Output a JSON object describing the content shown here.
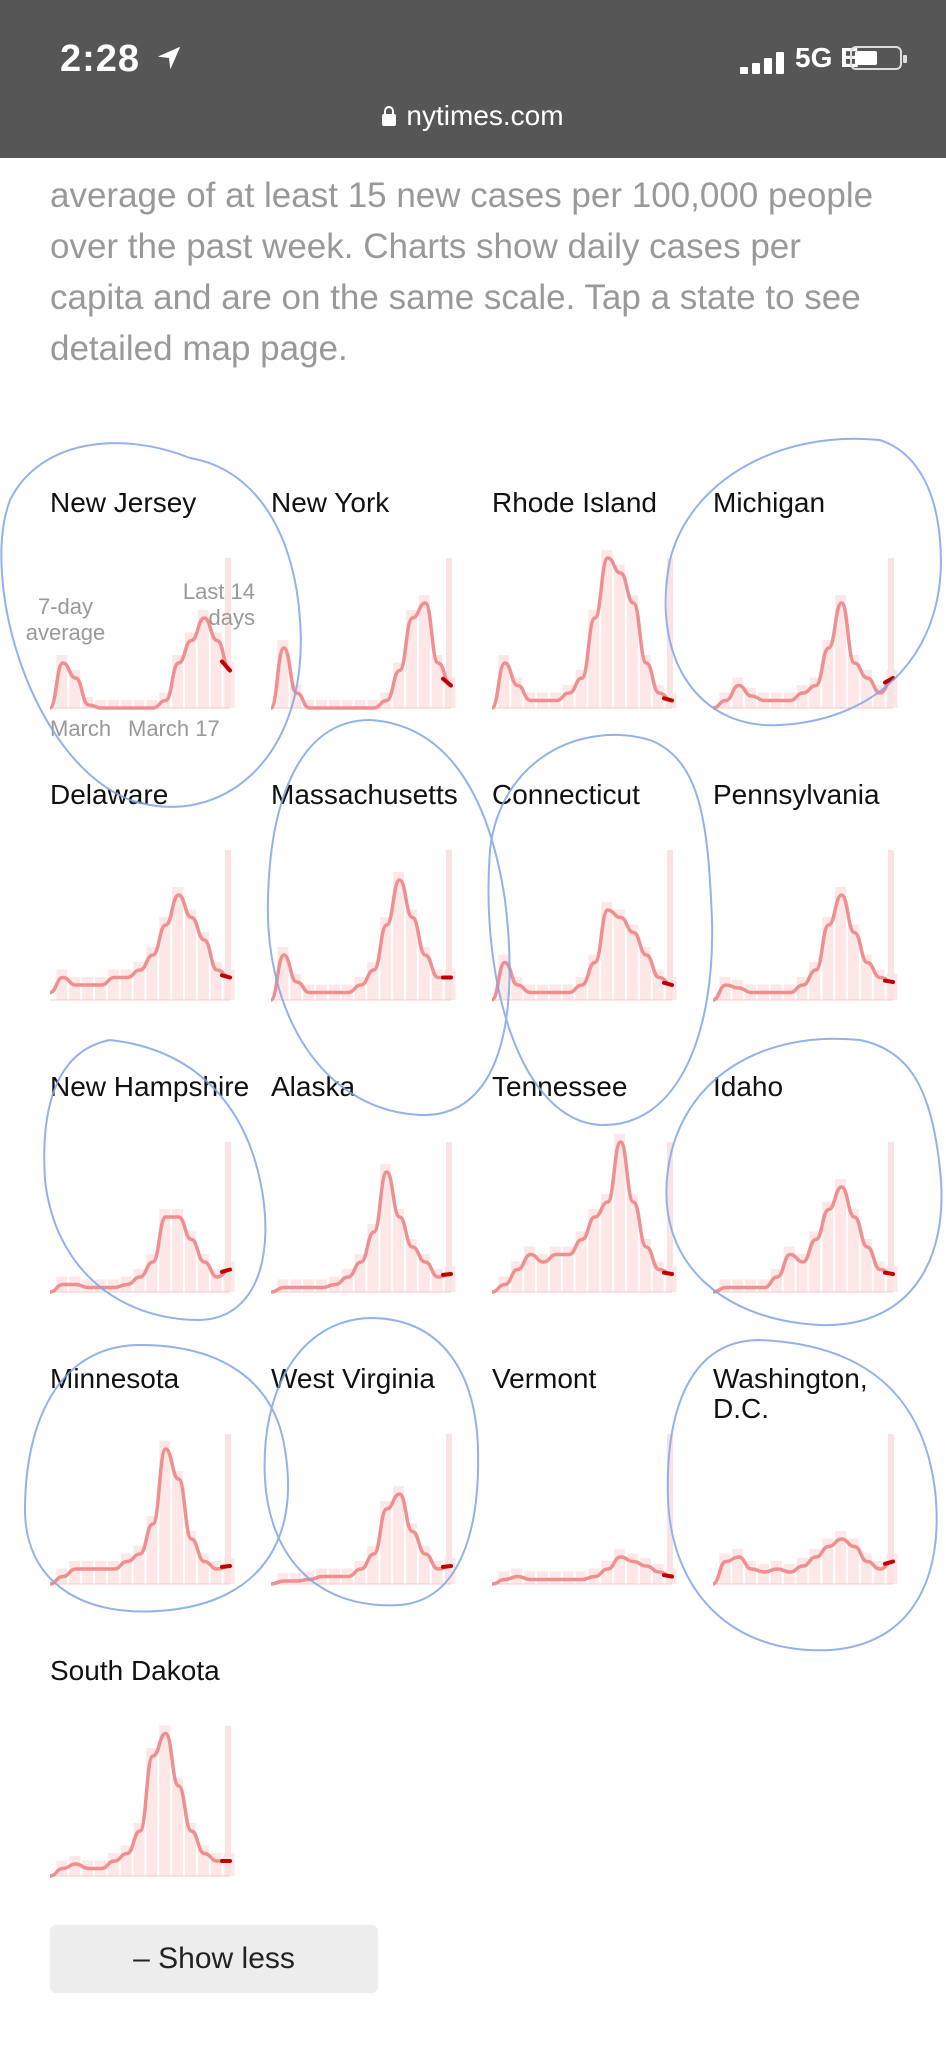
{
  "status_bar": {
    "time": "2:28",
    "network": "5G E"
  },
  "browser": {
    "url": "nytimes.com"
  },
  "intro": {
    "text": "average of at least 15 new cases per 100,000 people over the past week. Charts show daily cases per capita and are on the same scale. Tap a state to see detailed map page."
  },
  "legend": {
    "avg_label": "7-day average",
    "recent_label": "Last 14 days",
    "start_label": "March",
    "mid_label": "March 17"
  },
  "colors": {
    "line": "#f08f8f",
    "bars": "#fcd4d4",
    "recent": "#c00000",
    "annotation": "#5b8fe0"
  },
  "states": [
    {
      "name": "New Jersey",
      "values": [
        0,
        30,
        20,
        2,
        0,
        0,
        0,
        0,
        0,
        5,
        30,
        45,
        60,
        45,
        25
      ]
    },
    {
      "name": "New York",
      "values": [
        0,
        40,
        10,
        0,
        0,
        0,
        0,
        0,
        0,
        5,
        25,
        60,
        70,
        30,
        15
      ]
    },
    {
      "name": "Rhode Island",
      "values": [
        0,
        30,
        15,
        5,
        5,
        5,
        10,
        20,
        60,
        100,
        90,
        70,
        30,
        10,
        5
      ]
    },
    {
      "name": "Michigan",
      "values": [
        0,
        5,
        15,
        8,
        5,
        5,
        5,
        10,
        15,
        40,
        70,
        30,
        20,
        10,
        20
      ]
    },
    {
      "name": "Delaware",
      "values": [
        5,
        15,
        10,
        10,
        10,
        15,
        15,
        20,
        30,
        50,
        70,
        55,
        40,
        20,
        15
      ]
    },
    {
      "name": "Massachusetts",
      "values": [
        0,
        30,
        12,
        5,
        5,
        5,
        5,
        10,
        20,
        50,
        80,
        55,
        30,
        15,
        15
      ]
    },
    {
      "name": "Connecticut",
      "values": [
        0,
        25,
        10,
        5,
        5,
        5,
        5,
        10,
        25,
        60,
        55,
        45,
        30,
        15,
        10
      ]
    },
    {
      "name": "Pennsylvania",
      "values": [
        0,
        10,
        8,
        5,
        5,
        5,
        5,
        10,
        20,
        50,
        70,
        45,
        25,
        15,
        12
      ]
    },
    {
      "name": "New Hampshire",
      "values": [
        0,
        5,
        5,
        3,
        3,
        3,
        5,
        10,
        20,
        50,
        50,
        35,
        20,
        10,
        15
      ]
    },
    {
      "name": "Alaska",
      "values": [
        0,
        3,
        3,
        3,
        3,
        5,
        10,
        20,
        40,
        80,
        50,
        30,
        20,
        10,
        12
      ]
    },
    {
      "name": "Tennessee",
      "values": [
        0,
        5,
        15,
        25,
        20,
        25,
        25,
        35,
        50,
        60,
        100,
        60,
        30,
        15,
        12
      ]
    },
    {
      "name": "Idaho",
      "values": [
        0,
        3,
        3,
        3,
        3,
        10,
        25,
        20,
        35,
        55,
        70,
        50,
        30,
        15,
        12
      ]
    },
    {
      "name": "Minnesota",
      "values": [
        0,
        5,
        10,
        10,
        10,
        10,
        15,
        20,
        40,
        90,
        70,
        30,
        15,
        10,
        12
      ]
    },
    {
      "name": "West Virginia",
      "values": [
        0,
        2,
        2,
        3,
        5,
        5,
        5,
        10,
        20,
        50,
        60,
        35,
        20,
        10,
        12
      ]
    },
    {
      "name": "Vermont",
      "values": [
        0,
        3,
        5,
        3,
        3,
        3,
        3,
        3,
        5,
        10,
        18,
        15,
        12,
        8,
        5
      ]
    },
    {
      "name": "Washington, D.C.",
      "values": [
        0,
        15,
        18,
        10,
        8,
        10,
        8,
        12,
        18,
        25,
        30,
        25,
        15,
        10,
        15
      ]
    },
    {
      "name": "South Dakota",
      "values": [
        0,
        5,
        8,
        5,
        5,
        10,
        15,
        30,
        80,
        95,
        60,
        30,
        15,
        10,
        10
      ]
    }
  ],
  "show_less_label": "– Show less"
}
